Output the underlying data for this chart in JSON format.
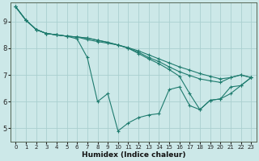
{
  "xlabel": "Humidex (Indice chaleur)",
  "xlim": [
    -0.5,
    23.5
  ],
  "ylim": [
    4.5,
    9.7
  ],
  "yticks": [
    5,
    6,
    7,
    8,
    9
  ],
  "xticks": [
    0,
    1,
    2,
    3,
    4,
    5,
    6,
    7,
    8,
    9,
    10,
    11,
    12,
    13,
    14,
    15,
    16,
    17,
    18,
    19,
    20,
    21,
    22,
    23
  ],
  "bg_color": "#cce8e8",
  "grid_color": "#aacfcf",
  "line_color": "#1e7b6e",
  "line1_x": [
    0,
    1,
    2,
    3,
    4,
    5,
    6,
    7,
    8,
    9,
    10,
    11,
    12,
    13,
    14,
    15,
    16,
    17,
    18,
    19,
    20,
    21,
    22,
    23
  ],
  "line1_y": [
    9.55,
    9.05,
    8.7,
    8.55,
    8.5,
    8.45,
    8.42,
    8.38,
    8.3,
    8.22,
    8.12,
    8.02,
    7.9,
    7.75,
    7.6,
    7.45,
    7.3,
    7.18,
    7.05,
    6.95,
    6.85,
    6.9,
    7.0,
    6.9
  ],
  "line2_x": [
    0,
    1,
    2,
    3,
    4,
    5,
    6,
    7,
    8,
    9,
    10,
    11,
    12,
    13,
    14,
    15,
    16,
    17,
    18,
    19,
    20,
    21,
    22,
    23
  ],
  "line2_y": [
    9.55,
    9.05,
    8.7,
    8.55,
    8.5,
    8.45,
    8.42,
    8.38,
    8.3,
    8.22,
    8.12,
    8.0,
    7.85,
    7.65,
    7.5,
    7.3,
    7.12,
    6.98,
    6.85,
    6.78,
    6.72,
    6.9,
    7.0,
    6.9
  ],
  "line3_x": [
    0,
    1,
    2,
    3,
    4,
    5,
    6,
    7,
    8,
    9,
    10,
    11,
    12,
    13,
    14,
    15,
    16,
    17,
    18,
    19,
    20,
    21,
    22,
    23
  ],
  "line3_y": [
    9.55,
    9.05,
    8.7,
    8.55,
    8.5,
    8.45,
    8.35,
    7.65,
    6.0,
    6.3,
    4.9,
    5.2,
    5.4,
    5.5,
    5.55,
    6.45,
    6.55,
    5.85,
    5.7,
    6.05,
    6.1,
    6.3,
    6.6,
    6.9
  ],
  "line4_x": [
    0,
    1,
    2,
    3,
    4,
    5,
    6,
    7,
    8,
    10,
    11,
    12,
    13,
    14,
    15,
    16,
    17,
    18,
    19,
    20,
    21,
    22,
    23
  ],
  "line4_y": [
    9.55,
    9.05,
    8.7,
    8.55,
    8.5,
    8.45,
    8.42,
    8.32,
    8.25,
    8.12,
    8.0,
    7.8,
    7.6,
    7.42,
    7.2,
    6.95,
    6.3,
    5.7,
    6.05,
    6.1,
    6.55,
    6.6,
    6.9
  ]
}
